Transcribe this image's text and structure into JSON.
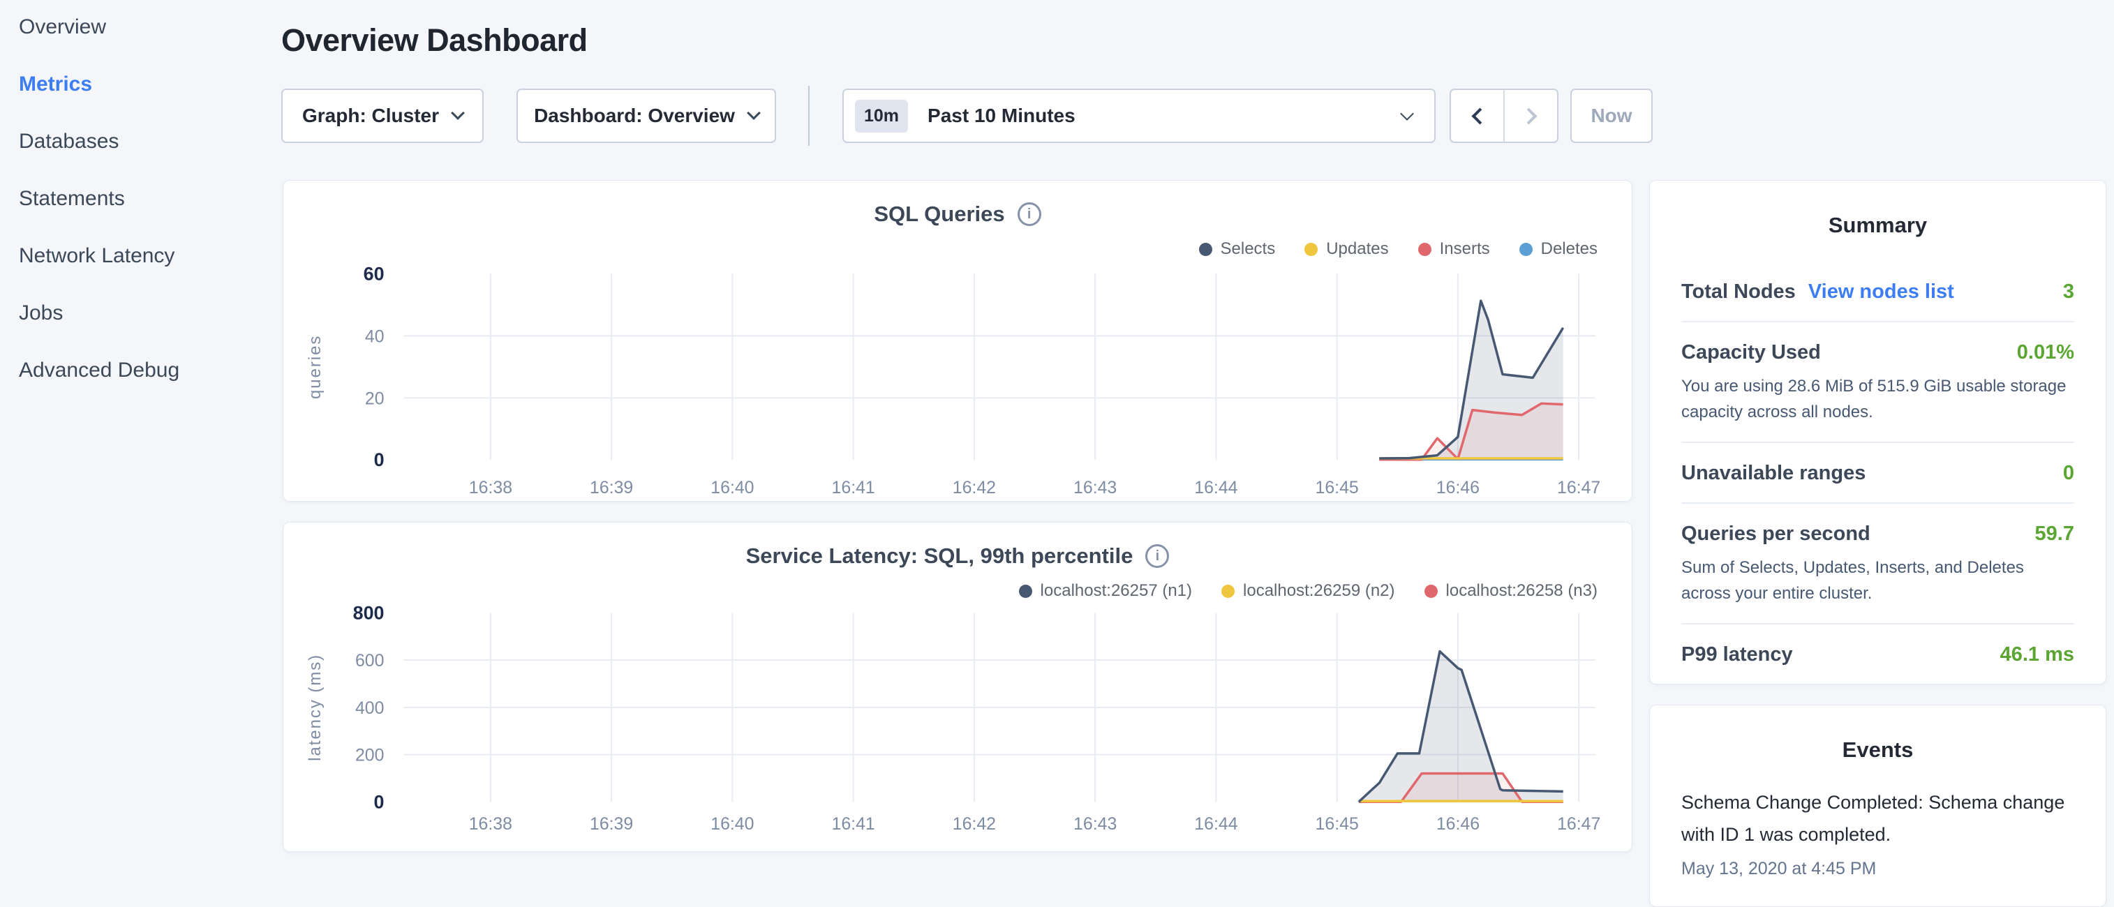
{
  "sidebar": {
    "items": [
      {
        "label": "Overview",
        "active": false
      },
      {
        "label": "Metrics",
        "active": true
      },
      {
        "label": "Databases",
        "active": false
      },
      {
        "label": "Statements",
        "active": false
      },
      {
        "label": "Network Latency",
        "active": false
      },
      {
        "label": "Jobs",
        "active": false
      },
      {
        "label": "Advanced Debug",
        "active": false
      }
    ]
  },
  "header": {
    "title": "Overview Dashboard"
  },
  "toolbar": {
    "graph_dropdown": {
      "label": "Graph: Cluster"
    },
    "dashboard_dropdown": {
      "label": "Dashboard: Overview"
    },
    "time_selector": {
      "badge": "10m",
      "label": "Past 10 Minutes"
    },
    "now_label": "Now"
  },
  "colors": {
    "accent_blue": "#3d7df4",
    "value_green": "#5ba532",
    "series_navy": "#475872",
    "series_yellow": "#f0c63f",
    "series_red": "#e0686c",
    "series_blue": "#5b9fd4"
  },
  "chart_data": [
    {
      "type": "area",
      "title": "SQL Queries",
      "ylabel": "queries",
      "ylim": [
        0,
        60
      ],
      "yticks": [
        0,
        20,
        40,
        60
      ],
      "x_ticks": [
        "16:38",
        "16:39",
        "16:40",
        "16:41",
        "16:42",
        "16:43",
        "16:44",
        "16:45",
        "16:46",
        "16:47"
      ],
      "x_unit": "minutes after 16:37 (tick 16:38 = 1.0)",
      "x_domain_minutes": [
        0.28,
        10.14
      ],
      "grid": true,
      "legend_position": "top-right",
      "series": [
        {
          "name": "Selects",
          "color": "#475872",
          "fill": "rgba(71,88,114,0.14)",
          "points": [
            [
              8.35,
              0.5
            ],
            [
              8.6,
              0.6
            ],
            [
              8.83,
              1.5
            ],
            [
              9.0,
              7.4
            ],
            [
              9.19,
              51.3
            ],
            [
              9.25,
              45.2
            ],
            [
              9.37,
              27.6
            ],
            [
              9.53,
              26.9
            ],
            [
              9.62,
              26.5
            ],
            [
              9.87,
              42.6
            ]
          ]
        },
        {
          "name": "Updates",
          "color": "#f0c63f",
          "fill": null,
          "points": [
            [
              8.35,
              0.5
            ],
            [
              9.87,
              0.5
            ]
          ]
        },
        {
          "name": "Inserts",
          "color": "#e0686c",
          "fill": "rgba(224,104,108,0.10)",
          "points": [
            [
              8.35,
              0.1
            ],
            [
              8.7,
              0.1
            ],
            [
              8.83,
              7.0
            ],
            [
              9.0,
              0.3
            ],
            [
              9.12,
              16.1
            ],
            [
              9.3,
              15.3
            ],
            [
              9.53,
              14.5
            ],
            [
              9.69,
              18.2
            ],
            [
              9.87,
              17.9
            ]
          ]
        },
        {
          "name": "Deletes",
          "color": "#5b9fd4",
          "fill": null,
          "points": [
            [
              8.35,
              0.2
            ],
            [
              9.87,
              0.2
            ]
          ]
        }
      ]
    },
    {
      "type": "area",
      "title": "Service Latency: SQL, 99th percentile",
      "ylabel": "latency (ms)",
      "ylim": [
        0,
        800
      ],
      "yticks": [
        0,
        200,
        400,
        600,
        800
      ],
      "x_ticks": [
        "16:38",
        "16:39",
        "16:40",
        "16:41",
        "16:42",
        "16:43",
        "16:44",
        "16:45",
        "16:46",
        "16:47"
      ],
      "x_unit": "minutes after 16:37 (tick 16:38 = 1.0)",
      "x_domain_minutes": [
        0.28,
        10.14
      ],
      "grid": true,
      "legend_position": "top-right",
      "series": [
        {
          "name": "localhost:26257 (n1)",
          "color": "#475872",
          "fill": "rgba(71,88,114,0.14)",
          "points": [
            [
              8.18,
              0
            ],
            [
              8.3,
              57
            ],
            [
              8.35,
              80
            ],
            [
              8.5,
              205
            ],
            [
              8.68,
              205
            ],
            [
              8.85,
              637
            ],
            [
              9.0,
              566
            ],
            [
              9.03,
              559
            ],
            [
              9.35,
              54
            ],
            [
              9.37,
              49
            ],
            [
              9.87,
              44
            ]
          ]
        },
        {
          "name": "localhost:26259 (n2)",
          "color": "#f0c63f",
          "fill": null,
          "points": [
            [
              8.18,
              3
            ],
            [
              9.87,
              3
            ]
          ]
        },
        {
          "name": "localhost:26258 (n3)",
          "color": "#e0686c",
          "fill": "rgba(224,104,108,0.10)",
          "points": [
            [
              8.18,
              0
            ],
            [
              8.53,
              0
            ],
            [
              8.7,
              120
            ],
            [
              9.37,
              120
            ],
            [
              9.53,
              0
            ],
            [
              9.87,
              0
            ]
          ]
        }
      ]
    }
  ],
  "summary": {
    "title": "Summary",
    "rows": [
      {
        "label": "Total Nodes",
        "link": "View nodes list",
        "value": "3"
      },
      {
        "label": "Capacity Used",
        "value": "0.01%",
        "description": "You are using 28.6 MiB of 515.9 GiB usable storage capacity across all nodes."
      },
      {
        "label": "Unavailable ranges",
        "value": "0"
      },
      {
        "label": "Queries per second",
        "value": "59.7",
        "description": "Sum of Selects, Updates, Inserts, and Deletes across your entire cluster."
      },
      {
        "label": "P99 latency",
        "value": "46.1 ms"
      }
    ]
  },
  "events": {
    "title": "Events",
    "items": [
      {
        "text": "Schema Change Completed: Schema change with ID 1 was completed.",
        "timestamp": "May 13, 2020 at 4:45 PM"
      }
    ]
  }
}
